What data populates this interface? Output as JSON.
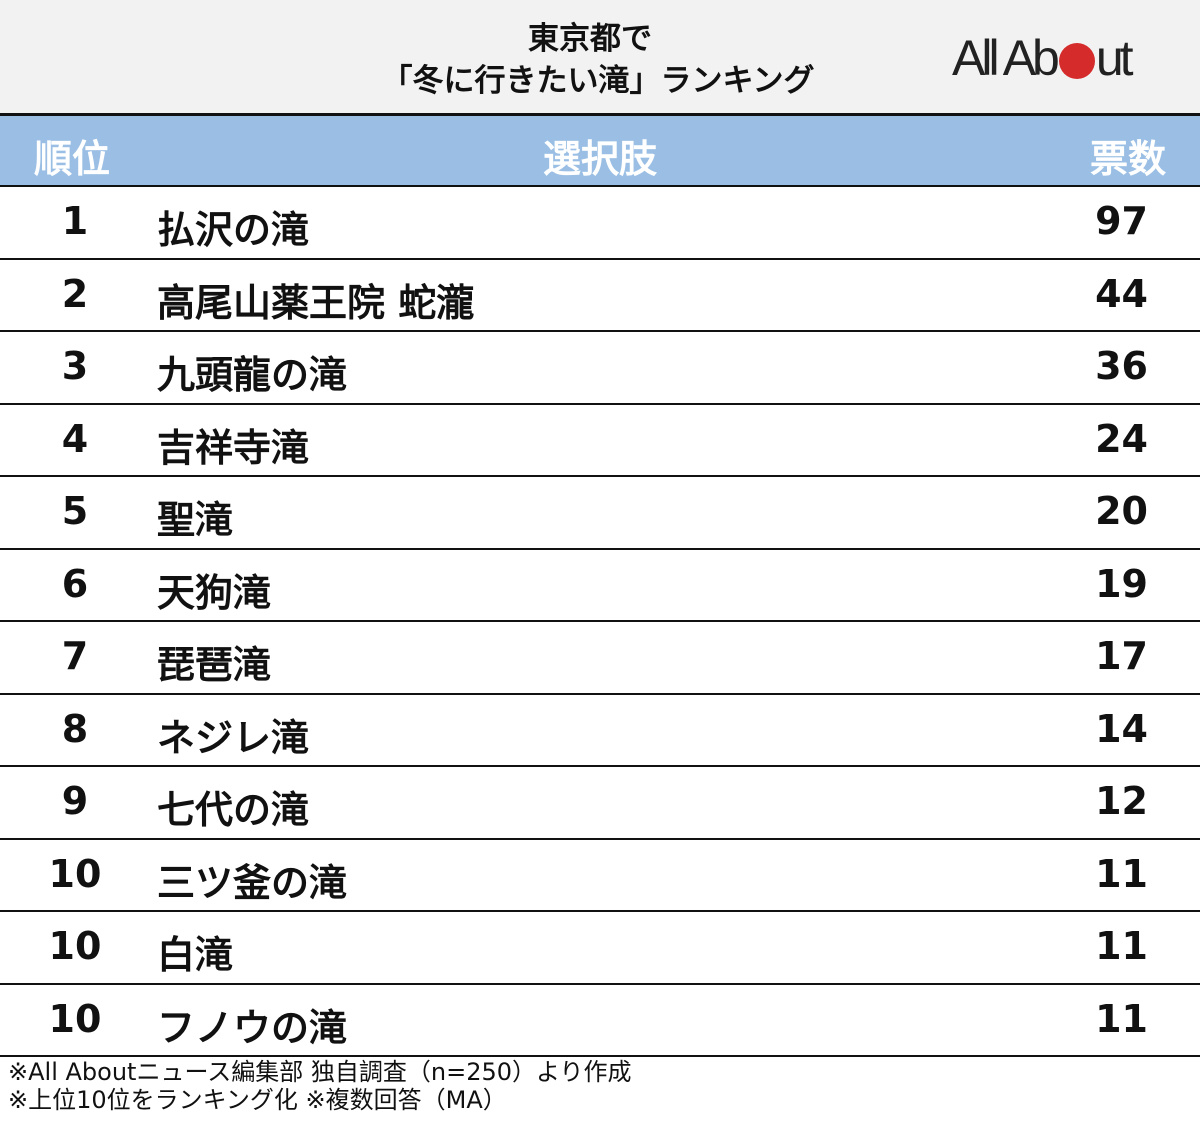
{
  "header": {
    "title_line1": "東京都で",
    "title_line2": "「冬に行きたい滝」ランキング",
    "logo_text_left": "All Ab",
    "logo_text_right": "ut",
    "logo_dot_color": "#d52b2b"
  },
  "table": {
    "columns": {
      "rank": "順位",
      "choice": "選択肢",
      "votes": "票数"
    },
    "header_color": "#9bbfe4",
    "rows": [
      {
        "rank": "1",
        "name": "払沢の滝",
        "votes": "97"
      },
      {
        "rank": "2",
        "name": "高尾山薬王院 蛇瀧",
        "votes": "44"
      },
      {
        "rank": "3",
        "name": "九頭龍の滝",
        "votes": "36"
      },
      {
        "rank": "4",
        "name": "吉祥寺滝",
        "votes": "24"
      },
      {
        "rank": "5",
        "name": "聖滝",
        "votes": "20"
      },
      {
        "rank": "6",
        "name": "天狗滝",
        "votes": "19"
      },
      {
        "rank": "7",
        "name": "琵琶滝",
        "votes": "17"
      },
      {
        "rank": "8",
        "name": "ネジレ滝",
        "votes": "14"
      },
      {
        "rank": "9",
        "name": "七代の滝",
        "votes": "12"
      },
      {
        "rank": "10",
        "name": "三ツ釜の滝",
        "votes": "11"
      },
      {
        "rank": "10",
        "name": "白滝",
        "votes": "11"
      },
      {
        "rank": "10",
        "name": "フノウの滝",
        "votes": "11"
      }
    ]
  },
  "notes": [
    "※All Aboutニュース編集部 独自調査（n=250）より作成",
    "※上位10位をランキング化 ※複数回答（MA）"
  ],
  "chart_data": {
    "type": "table",
    "title": "東京都で「冬に行きたい滝」ランキング",
    "columns": [
      "順位",
      "選択肢",
      "票数"
    ],
    "categories": [
      "払沢の滝",
      "高尾山薬王院 蛇瀧",
      "九頭龍の滝",
      "吉祥寺滝",
      "聖滝",
      "天狗滝",
      "琵琶滝",
      "ネジレ滝",
      "七代の滝",
      "三ツ釜の滝",
      "白滝",
      "フノウの滝"
    ],
    "ranks": [
      1,
      2,
      3,
      4,
      5,
      6,
      7,
      8,
      9,
      10,
      10,
      10
    ],
    "values": [
      97,
      44,
      36,
      24,
      20,
      19,
      17,
      14,
      12,
      11,
      11,
      11
    ],
    "notes": [
      "※All Aboutニュース編集部 独自調査（n=250）より作成",
      "※上位10位をランキング化 ※複数回答（MA）"
    ]
  }
}
